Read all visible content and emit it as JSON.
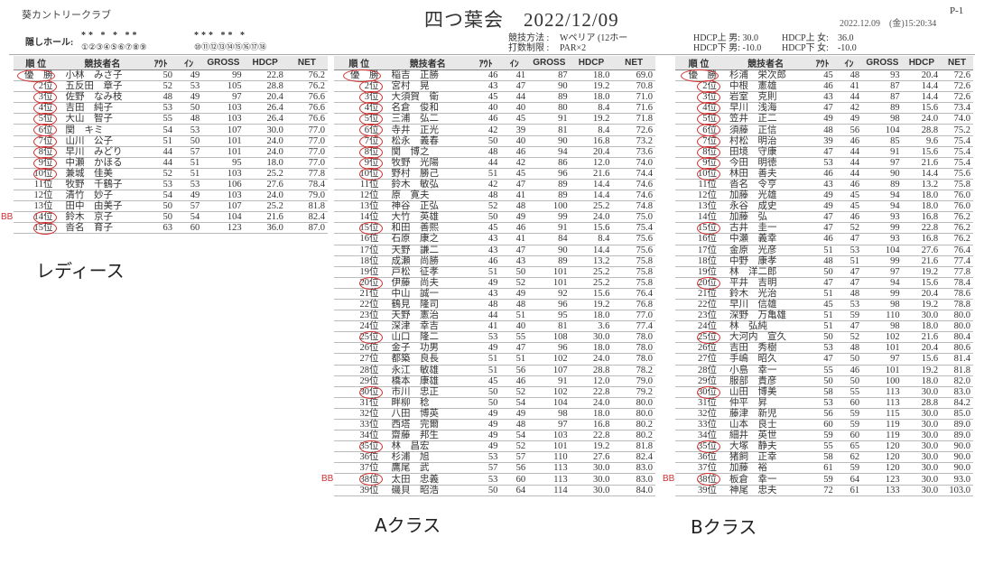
{
  "header": {
    "club": "葵カントリークラブ",
    "title": "四つ葉会　2022/12/09",
    "page": "P-1",
    "printed_at": "2022.12.09　(金)15:20:34",
    "hidden_holes_label": "隠しホール:",
    "hidden_holes_front_stars": "** * * **",
    "hidden_holes_front_nums": "①②③④⑤⑥⑦⑧⑨",
    "hidden_holes_back_stars": "*** ** *",
    "hidden_holes_back_nums": "⑩⑪⑫⑬⑭⑮⑯⑰⑱",
    "method_label": "競技方法 :",
    "method_value": "Wペリア (12ホー",
    "limit_label": "打数制限 :",
    "limit_value": "PAR×2",
    "hdcp_upper_male": "HDCP上 男: 30.0",
    "hdcp_lower_male": "HDCP下 男: -10.0",
    "hdcp_upper_female": "HDCP上 女:　36.0",
    "hdcp_lower_female": "HDCP下 女:　-10.0"
  },
  "columns": [
    "順 位",
    "競技者名",
    "ｱｳﾄ",
    "ｲﾝ",
    "GROSS",
    "HDCP",
    "NET"
  ],
  "annotation_color": "#d03030",
  "tables": {
    "ladies": {
      "label": "レディース",
      "circled_ranks": [
        1,
        2,
        3,
        4,
        5,
        6,
        7,
        8,
        9,
        10,
        14,
        15
      ],
      "bb_ranks": [
        14
      ],
      "rows": [
        [
          "優　勝",
          "小林　みさ子",
          "50",
          "49",
          "99",
          "22.8",
          "76.2"
        ],
        [
          "2位",
          "五反田　章子",
          "52",
          "53",
          "105",
          "28.8",
          "76.2"
        ],
        [
          "3位",
          "佐野　なみ枝",
          "48",
          "49",
          "97",
          "20.4",
          "76.6"
        ],
        [
          "4位",
          "吉田　純子",
          "53",
          "50",
          "103",
          "26.4",
          "76.6"
        ],
        [
          "5位",
          "大山　智子",
          "55",
          "48",
          "103",
          "26.4",
          "76.6"
        ],
        [
          "6位",
          "関　キミ",
          "54",
          "53",
          "107",
          "30.0",
          "77.0"
        ],
        [
          "7位",
          "山川　公子",
          "51",
          "50",
          "101",
          "24.0",
          "77.0"
        ],
        [
          "8位",
          "早川　みどり",
          "44",
          "57",
          "101",
          "24.0",
          "77.0"
        ],
        [
          "9位",
          "中瀬　かほる",
          "44",
          "51",
          "95",
          "18.0",
          "77.0"
        ],
        [
          "10位",
          "兼城　佳美",
          "52",
          "51",
          "103",
          "25.2",
          "77.8"
        ],
        [
          "11位",
          "牧野　千鶴子",
          "53",
          "53",
          "106",
          "27.6",
          "78.4"
        ],
        [
          "12位",
          "清竹　妙子",
          "54",
          "49",
          "103",
          "24.0",
          "79.0"
        ],
        [
          "13位",
          "田中　由美子",
          "50",
          "57",
          "107",
          "25.2",
          "81.8"
        ],
        [
          "14位",
          "鈴木　京子",
          "50",
          "54",
          "104",
          "21.6",
          "82.4"
        ],
        [
          "15位",
          "沓名　育子",
          "63",
          "60",
          "123",
          "36.0",
          "87.0"
        ]
      ]
    },
    "a_class": {
      "label": "Aクラス",
      "circled_ranks": [
        1,
        2,
        3,
        4,
        5,
        6,
        7,
        8,
        9,
        10,
        15,
        20,
        25,
        30,
        35,
        38
      ],
      "bb_ranks": [
        38
      ],
      "rows": [
        [
          "優　勝",
          "稲吉　正勝",
          "46",
          "41",
          "87",
          "18.0",
          "69.0"
        ],
        [
          "2位",
          "宮村　晃",
          "43",
          "47",
          "90",
          "19.2",
          "70.8"
        ],
        [
          "3位",
          "大須賀　衛",
          "45",
          "44",
          "89",
          "18.0",
          "71.0"
        ],
        [
          "4位",
          "名倉　俊和",
          "40",
          "40",
          "80",
          "8.4",
          "71.6"
        ],
        [
          "5位",
          "三浦　弘二",
          "46",
          "45",
          "91",
          "19.2",
          "71.8"
        ],
        [
          "6位",
          "寺井　正光",
          "42",
          "39",
          "81",
          "8.4",
          "72.6"
        ],
        [
          "7位",
          "松永　義春",
          "50",
          "40",
          "90",
          "16.8",
          "73.2"
        ],
        [
          "8位",
          "関　博之",
          "48",
          "46",
          "94",
          "20.4",
          "73.6"
        ],
        [
          "9位",
          "牧野　光陽",
          "44",
          "42",
          "86",
          "12.0",
          "74.0"
        ],
        [
          "10位",
          "野村　勝己",
          "51",
          "45",
          "96",
          "21.6",
          "74.4"
        ],
        [
          "11位",
          "鈴木　敏弘",
          "42",
          "47",
          "89",
          "14.4",
          "74.6"
        ],
        [
          "12位",
          "原　寛夫",
          "48",
          "41",
          "89",
          "14.4",
          "74.6"
        ],
        [
          "13位",
          "神谷　正弘",
          "52",
          "48",
          "100",
          "25.2",
          "74.8"
        ],
        [
          "14位",
          "大竹　英雄",
          "50",
          "49",
          "99",
          "24.0",
          "75.0"
        ],
        [
          "15位",
          "和田　善熙",
          "45",
          "46",
          "91",
          "15.6",
          "75.4"
        ],
        [
          "16位",
          "石原　康之",
          "43",
          "41",
          "84",
          "8.4",
          "75.6"
        ],
        [
          "17位",
          "天野　謙二",
          "43",
          "47",
          "90",
          "14.4",
          "75.6"
        ],
        [
          "18位",
          "成瀬　尚勝",
          "46",
          "43",
          "89",
          "13.2",
          "75.8"
        ],
        [
          "19位",
          "戸松　征孝",
          "51",
          "50",
          "101",
          "25.2",
          "75.8"
        ],
        [
          "20位",
          "伊藤　尚夫",
          "49",
          "52",
          "101",
          "25.2",
          "75.8"
        ],
        [
          "21位",
          "中山　誠一",
          "43",
          "49",
          "92",
          "15.6",
          "76.4"
        ],
        [
          "22位",
          "鶴見　隆司",
          "48",
          "48",
          "96",
          "19.2",
          "76.8"
        ],
        [
          "23位",
          "天野　憲治",
          "44",
          "51",
          "95",
          "18.0",
          "77.0"
        ],
        [
          "24位",
          "深津　幸吉",
          "41",
          "40",
          "81",
          "3.6",
          "77.4"
        ],
        [
          "25位",
          "山口　隆二",
          "53",
          "55",
          "108",
          "30.0",
          "78.0"
        ],
        [
          "26位",
          "金子　功男",
          "49",
          "47",
          "96",
          "18.0",
          "78.0"
        ],
        [
          "27位",
          "都築　良長",
          "51",
          "51",
          "102",
          "24.0",
          "78.0"
        ],
        [
          "28位",
          "永江　敏雄",
          "51",
          "56",
          "107",
          "28.8",
          "78.2"
        ],
        [
          "29位",
          "橋本　康雄",
          "45",
          "46",
          "91",
          "12.0",
          "79.0"
        ],
        [
          "30位",
          "市川　忠正",
          "50",
          "52",
          "102",
          "22.8",
          "79.2"
        ],
        [
          "31位",
          "畔柳　稔",
          "50",
          "54",
          "104",
          "24.0",
          "80.0"
        ],
        [
          "32位",
          "八田　博英",
          "49",
          "49",
          "98",
          "18.0",
          "80.0"
        ],
        [
          "33位",
          "西塔　完爾",
          "49",
          "48",
          "97",
          "16.8",
          "80.2"
        ],
        [
          "34位",
          "齋藤　邦生",
          "49",
          "54",
          "103",
          "22.8",
          "80.2"
        ],
        [
          "35位",
          "林　昌宏",
          "49",
          "52",
          "101",
          "19.2",
          "81.8"
        ],
        [
          "36位",
          "杉浦　旭",
          "53",
          "57",
          "110",
          "27.6",
          "82.4"
        ],
        [
          "37位",
          "鷹尾　武",
          "57",
          "56",
          "113",
          "30.0",
          "83.0"
        ],
        [
          "38位",
          "太田　忠義",
          "53",
          "60",
          "113",
          "30.0",
          "83.0"
        ],
        [
          "39位",
          "磯貝　昭浩",
          "50",
          "64",
          "114",
          "30.0",
          "84.0"
        ]
      ]
    },
    "b_class": {
      "label": "Bクラス",
      "circled_ranks": [
        1,
        2,
        3,
        4,
        5,
        6,
        7,
        8,
        9,
        10,
        15,
        20,
        25,
        30,
        35,
        38
      ],
      "bb_ranks": [
        38
      ],
      "rows": [
        [
          "優　勝",
          "杉浦　栄次郎",
          "45",
          "48",
          "93",
          "20.4",
          "72.6"
        ],
        [
          "2位",
          "中根　憲雄",
          "46",
          "41",
          "87",
          "14.4",
          "72.6"
        ],
        [
          "3位",
          "岩室　克則",
          "43",
          "44",
          "87",
          "14.4",
          "72.6"
        ],
        [
          "4位",
          "早川　浅海",
          "47",
          "42",
          "89",
          "15.6",
          "73.4"
        ],
        [
          "5位",
          "笠井　正二",
          "49",
          "49",
          "98",
          "24.0",
          "74.0"
        ],
        [
          "6位",
          "須藤　正信",
          "48",
          "56",
          "104",
          "28.8",
          "75.2"
        ],
        [
          "7位",
          "村松　明治",
          "39",
          "46",
          "85",
          "9.6",
          "75.4"
        ],
        [
          "8位",
          "田境　守康",
          "47",
          "44",
          "91",
          "15.6",
          "75.4"
        ],
        [
          "9位",
          "今田　明徳",
          "53",
          "44",
          "97",
          "21.6",
          "75.4"
        ],
        [
          "10位",
          "林田　善夫",
          "46",
          "44",
          "90",
          "14.4",
          "75.6"
        ],
        [
          "11位",
          "沓名　令亨",
          "43",
          "46",
          "89",
          "13.2",
          "75.8"
        ],
        [
          "12位",
          "加藤　光雄",
          "49",
          "45",
          "94",
          "18.0",
          "76.0"
        ],
        [
          "13位",
          "永谷　成史",
          "49",
          "45",
          "94",
          "18.0",
          "76.0"
        ],
        [
          "14位",
          "加藤　弘",
          "47",
          "46",
          "93",
          "16.8",
          "76.2"
        ],
        [
          "15位",
          "古井　圭一",
          "47",
          "52",
          "99",
          "22.8",
          "76.2"
        ],
        [
          "16位",
          "中瀬　義幸",
          "46",
          "47",
          "93",
          "16.8",
          "76.2"
        ],
        [
          "17位",
          "金原　光彦",
          "51",
          "53",
          "104",
          "27.6",
          "76.4"
        ],
        [
          "18位",
          "中野　康孝",
          "48",
          "51",
          "99",
          "21.6",
          "77.4"
        ],
        [
          "19位",
          "林　洋二郎",
          "50",
          "47",
          "97",
          "19.2",
          "77.8"
        ],
        [
          "20位",
          "平井　吉明",
          "47",
          "47",
          "94",
          "15.6",
          "78.4"
        ],
        [
          "21位",
          "鈴木　光治",
          "51",
          "48",
          "99",
          "20.4",
          "78.6"
        ],
        [
          "22位",
          "早川　信雄",
          "45",
          "53",
          "98",
          "19.2",
          "78.8"
        ],
        [
          "23位",
          "深野　万亀雄",
          "51",
          "59",
          "110",
          "30.0",
          "80.0"
        ],
        [
          "24位",
          "林　弘純",
          "51",
          "47",
          "98",
          "18.0",
          "80.0"
        ],
        [
          "25位",
          "大河内　宣久",
          "50",
          "52",
          "102",
          "21.6",
          "80.4"
        ],
        [
          "26位",
          "吉田　秀樹",
          "53",
          "48",
          "101",
          "20.4",
          "80.6"
        ],
        [
          "27位",
          "手嶋　昭久",
          "47",
          "50",
          "97",
          "15.6",
          "81.4"
        ],
        [
          "28位",
          "小島　幸一",
          "55",
          "46",
          "101",
          "19.2",
          "81.8"
        ],
        [
          "29位",
          "服部　貴彦",
          "50",
          "50",
          "100",
          "18.0",
          "82.0"
        ],
        [
          "30位",
          "山田　博美",
          "58",
          "55",
          "113",
          "30.0",
          "83.0"
        ],
        [
          "31位",
          "仲平　昇",
          "53",
          "60",
          "113",
          "28.8",
          "84.2"
        ],
        [
          "32位",
          "藤津　新児",
          "56",
          "59",
          "115",
          "30.0",
          "85.0"
        ],
        [
          "33位",
          "山本　良士",
          "60",
          "59",
          "119",
          "30.0",
          "89.0"
        ],
        [
          "34位",
          "細井　英世",
          "59",
          "60",
          "119",
          "30.0",
          "89.0"
        ],
        [
          "35位",
          "大塚　静夫",
          "55",
          "65",
          "120",
          "30.0",
          "90.0"
        ],
        [
          "36位",
          "猪飼　正幸",
          "58",
          "62",
          "120",
          "30.0",
          "90.0"
        ],
        [
          "37位",
          "加藤　裕",
          "61",
          "59",
          "120",
          "30.0",
          "90.0"
        ],
        [
          "38位",
          "板倉　幸一",
          "59",
          "64",
          "123",
          "30.0",
          "93.0"
        ],
        [
          "39位",
          "神尾　忠夫",
          "72",
          "61",
          "133",
          "30.0",
          "103.0"
        ]
      ]
    }
  }
}
